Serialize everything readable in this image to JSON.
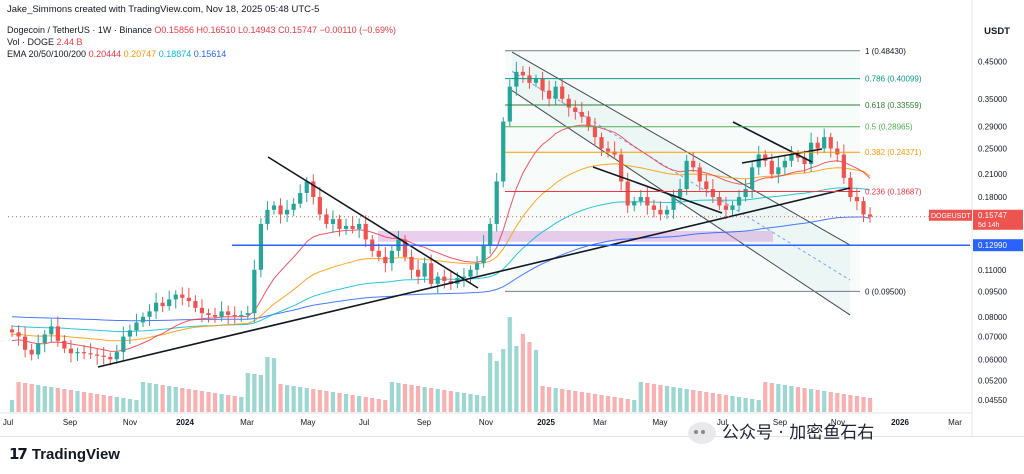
{
  "header": {
    "credit": "Jake_Simmons created with TradingView.com, Nov 18, 2025 05:48 UTC-5",
    "currency": "USDT",
    "legend": {
      "symbol": "Dogecoin / TetherUS · 1W · Binance",
      "ohlc": "O0.15856 H0.16510 L0.14943 C0.15747 −0.00110 (−0.69%)",
      "vol_label": "Vol · DOGE",
      "vol_value": "2.44 B",
      "ema_label": "EMA 20/50/100/200",
      "ema_values": [
        "0.20444",
        "0.20747",
        "0.18874",
        "0.15614"
      ],
      "ema_colors": [
        "#f23645",
        "#ff9800",
        "#00bcd4",
        "#2962ff"
      ]
    }
  },
  "colors": {
    "up": "#26a69a",
    "down": "#ef5350",
    "blue_line": "#2962ff",
    "fib_bg": "#e8f5f3"
  },
  "chart_data": {
    "type": "candlestick",
    "title": "Dogecoin / TetherUS · 1W · Binance",
    "price_scale": "log",
    "ylim": [
      0.042,
      0.55
    ],
    "y_ticks": [
      "0.45000",
      "0.35000",
      "0.29000",
      "0.25000",
      "0.21000",
      "0.18000",
      "0.15000",
      "0.12990",
      "0.11000",
      "0.09500",
      "0.08000",
      "0.07000",
      "0.06000",
      "0.05200",
      "0.04550"
    ],
    "x_ticks": [
      "Jul",
      "Sep",
      "Nov",
      "2024",
      "Mar",
      "May",
      "Jul",
      "Sep",
      "Nov",
      "2025",
      "Mar",
      "May",
      "Jul",
      "Sep",
      "Nov",
      "2026",
      "Mar"
    ],
    "fib_levels": [
      {
        "ratio": "1",
        "price": "0.48430",
        "color": "#787b86"
      },
      {
        "ratio": "0.786",
        "price": "0.40099",
        "color": "#089981"
      },
      {
        "ratio": "0.618",
        "price": "0.33559",
        "color": "#2e7d32"
      },
      {
        "ratio": "0.5",
        "price": "0.28965",
        "color": "#4caf50"
      },
      {
        "ratio": "0.382",
        "price": "0.24371",
        "color": "#ff9800"
      },
      {
        "ratio": "0.236",
        "price": "0.18687",
        "color": "#f23645"
      },
      {
        "ratio": "0",
        "price": "0.09500",
        "color": "#787b86"
      }
    ],
    "horizontal_line": {
      "price": "0.12990",
      "color": "#2962ff"
    },
    "current_price": {
      "symbol": "DOGEUSDT",
      "price": "0.15747",
      "countdown": "5d 14h"
    },
    "closes": [
      0.072,
      0.07,
      0.064,
      0.062,
      0.067,
      0.071,
      0.075,
      0.068,
      0.0645,
      0.0625,
      0.063,
      0.0625,
      0.062,
      0.0615,
      0.061,
      0.06,
      0.063,
      0.07,
      0.073,
      0.077,
      0.08,
      0.083,
      0.088,
      0.086,
      0.09,
      0.093,
      0.091,
      0.089,
      0.085,
      0.082,
      0.081,
      0.08,
      0.083,
      0.081,
      0.0805,
      0.081,
      0.082,
      0.11,
      0.15,
      0.165,
      0.17,
      0.16,
      0.165,
      0.172,
      0.185,
      0.2,
      0.18,
      0.16,
      0.15,
      0.155,
      0.145,
      0.148,
      0.145,
      0.15,
      0.135,
      0.125,
      0.12,
      0.115,
      0.125,
      0.135,
      0.12,
      0.11,
      0.105,
      0.115,
      0.1,
      0.105,
      0.102,
      0.1,
      0.104,
      0.105,
      0.11,
      0.115,
      0.13,
      0.15,
      0.2,
      0.3,
      0.38,
      0.42,
      0.41,
      0.39,
      0.4,
      0.37,
      0.35,
      0.38,
      0.35,
      0.33,
      0.32,
      0.31,
      0.29,
      0.27,
      0.25,
      0.245,
      0.24,
      0.2,
      0.17,
      0.175,
      0.18,
      0.17,
      0.165,
      0.16,
      0.165,
      0.18,
      0.19,
      0.23,
      0.22,
      0.2,
      0.19,
      0.18,
      0.17,
      0.165,
      0.17,
      0.18,
      0.19,
      0.22,
      0.24,
      0.23,
      0.21,
      0.22,
      0.23,
      0.24,
      0.235,
      0.225,
      0.26,
      0.25,
      0.27,
      0.25,
      0.24,
      0.205,
      0.18,
      0.175,
      0.16,
      0.1575
    ],
    "ema20": [
      0.068,
      0.0685,
      0.068,
      0.0672,
      0.0667,
      0.0667,
      0.0673,
      0.0674,
      0.0671,
      0.0666,
      0.0661,
      0.0656,
      0.0651,
      0.0645,
      0.064,
      0.0634,
      0.0633,
      0.0639,
      0.0646,
      0.0657,
      0.067,
      0.0683,
      0.0701,
      0.0715,
      0.0733,
      0.0752,
      0.0767,
      0.078,
      0.0787,
      0.079,
      0.0793,
      0.0794,
      0.0799,
      0.08,
      0.08,
      0.0801,
      0.0803,
      0.0831,
      0.0895,
      0.0967,
      0.1036,
      0.109,
      0.1144,
      0.1198,
      0.126,
      0.133,
      0.1375,
      0.1396,
      0.1406,
      0.142,
      0.1427,
      0.1436,
      0.1437,
      0.1443,
      0.1434,
      0.1417,
      0.1397,
      0.1373,
      0.1361,
      0.136,
      0.1345,
      0.1321,
      0.1295,
      0.1281,
      0.1254,
      0.1234,
      0.1212,
      0.1192,
      0.1178,
      0.1165,
      0.1159,
      0.1158,
      0.1171,
      0.1202,
      0.1278,
      0.1442,
      0.1666,
      0.1907,
      0.2116,
      0.2286,
      0.2449,
      0.2568,
      0.2656,
      0.2765,
      0.2835,
      0.288,
      0.2911,
      0.2929,
      0.2926,
      0.2905,
      0.2867,
      0.2827,
      0.2787,
      0.2712,
      0.2615,
      0.2533,
      0.2463,
      0.2391,
      0.232,
      0.2252,
      0.2195,
      0.2158,
      0.2134,
      0.2149,
      0.2154,
      0.214,
      0.2117,
      0.2087,
      0.205,
      0.2012,
      0.1983,
      0.1966,
      0.196,
      0.1983,
      0.2023,
      0.2049,
      0.2054,
      0.2068,
      0.209,
      0.2119,
      0.2141,
      0.2151,
      0.2194,
      0.2223,
      0.2269,
      0.2291,
      0.2302,
      0.2278,
      0.2232,
      0.2186,
      0.213,
      0.2044
    ],
    "ema50": [
      0.071,
      0.071,
      0.0707,
      0.0704,
      0.0702,
      0.0702,
      0.0704,
      0.0703,
      0.0701,
      0.0698,
      0.0695,
      0.0693,
      0.069,
      0.0687,
      0.0684,
      0.0681,
      0.068,
      0.0681,
      0.0683,
      0.0686,
      0.069,
      0.0696,
      0.0703,
      0.0709,
      0.0717,
      0.0726,
      0.0733,
      0.074,
      0.0745,
      0.0748,
      0.0751,
      0.0753,
      0.0757,
      0.0759,
      0.0761,
      0.0763,
      0.0765,
      0.0778,
      0.0806,
      0.0839,
      0.0873,
      0.0901,
      0.093,
      0.0961,
      0.0996,
      0.1035,
      0.1065,
      0.1086,
      0.1102,
      0.112,
      0.1134,
      0.1149,
      0.1162,
      0.1177,
      0.1185,
      0.1187,
      0.1187,
      0.1185,
      0.1187,
      0.1193,
      0.1193,
      0.1189,
      0.1183,
      0.1182,
      0.1174,
      0.1169,
      0.1163,
      0.1156,
      0.1152,
      0.1148,
      0.1146,
      0.1146,
      0.1152,
      0.1166,
      0.1199,
      0.1268,
      0.1365,
      0.1476,
      0.1579,
      0.167,
      0.1762,
      0.1839,
      0.1904,
      0.1978,
      0.2038,
      0.2089,
      0.2134,
      0.2173,
      0.2204,
      0.2225,
      0.2237,
      0.2248,
      0.2256,
      0.2248,
      0.2227,
      0.2209,
      0.2193,
      0.2173,
      0.2152,
      0.213,
      0.2111,
      0.2099,
      0.2091,
      0.2098,
      0.2103,
      0.21,
      0.2094,
      0.2085,
      0.2072,
      0.2058,
      0.2047,
      0.204,
      0.2037,
      0.2045,
      0.206,
      0.207,
      0.2072,
      0.2078,
      0.2088,
      0.2101,
      0.2112,
      0.2118,
      0.2137,
      0.2151,
      0.2173,
      0.2186,
      0.2195,
      0.219,
      0.2176,
      0.2161,
      0.2141,
      0.2075
    ],
    "ema100": [
      0.075,
      0.0749,
      0.0747,
      0.0745,
      0.0744,
      0.0743,
      0.0743,
      0.0742,
      0.074,
      0.0738,
      0.0736,
      0.0734,
      0.0732,
      0.073,
      0.0728,
      0.0726,
      0.0724,
      0.0724,
      0.0725,
      0.0726,
      0.0727,
      0.0729,
      0.0732,
      0.0735,
      0.0738,
      0.0742,
      0.0745,
      0.0748,
      0.075,
      0.0752,
      0.0753,
      0.0754,
      0.0756,
      0.0757,
      0.0758,
      0.0759,
      0.076,
      0.0767,
      0.0781,
      0.0798,
      0.0815,
      0.083,
      0.0846,
      0.0862,
      0.0881,
      0.0902,
      0.0919,
      0.0932,
      0.0943,
      0.0955,
      0.0964,
      0.0975,
      0.0984,
      0.0994,
      0.1001,
      0.1006,
      0.1009,
      0.1012,
      0.1016,
      0.1023,
      0.1027,
      0.1028,
      0.1029,
      0.1031,
      0.1031,
      0.1031,
      0.1031,
      0.1031,
      0.1032,
      0.1032,
      0.1034,
      0.1036,
      0.1041,
      0.105,
      0.1069,
      0.1106,
      0.1158,
      0.1217,
      0.1273,
      0.1324,
      0.1376,
      0.1421,
      0.1462,
      0.1508,
      0.1547,
      0.1582,
      0.1614,
      0.1644,
      0.1669,
      0.169,
      0.1706,
      0.1721,
      0.1735,
      0.1741,
      0.174,
      0.1741,
      0.1742,
      0.1741,
      0.1739,
      0.1735,
      0.1734,
      0.1735,
      0.1738,
      0.1748,
      0.1756,
      0.176,
      0.1763,
      0.1764,
      0.1763,
      0.1761,
      0.1761,
      0.1762,
      0.1765,
      0.1774,
      0.1786,
      0.1795,
      0.1801,
      0.1809,
      0.1818,
      0.1829,
      0.1839,
      0.1847,
      0.1862,
      0.1874,
      0.1891,
      0.1903,
      0.1913,
      0.1915,
      0.1912,
      0.1908,
      0.1901,
      0.1887
    ],
    "ema200": [
      0.08,
      0.0799,
      0.0797,
      0.0796,
      0.0795,
      0.0794,
      0.0793,
      0.0792,
      0.0791,
      0.079,
      0.0789,
      0.0787,
      0.0786,
      0.0785,
      0.0783,
      0.0782,
      0.078,
      0.078,
      0.0779,
      0.0779,
      0.0779,
      0.078,
      0.078,
      0.0781,
      0.0782,
      0.0783,
      0.0784,
      0.0785,
      0.0785,
      0.0786,
      0.0786,
      0.0786,
      0.0787,
      0.0787,
      0.0787,
      0.0787,
      0.0787,
      0.0791,
      0.0797,
      0.0805,
      0.0814,
      0.0821,
      0.0829,
      0.0837,
      0.0847,
      0.0857,
      0.0865,
      0.0872,
      0.0877,
      0.0884,
      0.0889,
      0.0895,
      0.09,
      0.0905,
      0.0909,
      0.0913,
      0.0915,
      0.0917,
      0.092,
      0.0925,
      0.0928,
      0.0929,
      0.0931,
      0.0933,
      0.0934,
      0.0935,
      0.0936,
      0.0937,
      0.0938,
      0.0939,
      0.0941,
      0.0943,
      0.0946,
      0.0952,
      0.0963,
      0.0981,
      0.1007,
      0.1037,
      0.1066,
      0.1093,
      0.1121,
      0.1146,
      0.1169,
      0.1195,
      0.1218,
      0.1239,
      0.1259,
      0.1278,
      0.1295,
      0.131,
      0.1322,
      0.1334,
      0.1345,
      0.1352,
      0.1355,
      0.1359,
      0.1363,
      0.1366,
      0.1368,
      0.137,
      0.1373,
      0.1377,
      0.1382,
      0.1391,
      0.1399,
      0.1405,
      0.1409,
      0.1413,
      0.1416,
      0.1418,
      0.1421,
      0.1425,
      0.143,
      0.1438,
      0.1448,
      0.1457,
      0.1464,
      0.1471,
      0.148,
      0.149,
      0.1499,
      0.1507,
      0.1519,
      0.153,
      0.1544,
      0.1555,
      0.1564,
      0.1569,
      0.1571,
      0.1572,
      0.1572,
      0.1561
    ]
  },
  "footer": {
    "brand": "TradingView",
    "watermark": "公众号 · 加密鱼石右"
  }
}
